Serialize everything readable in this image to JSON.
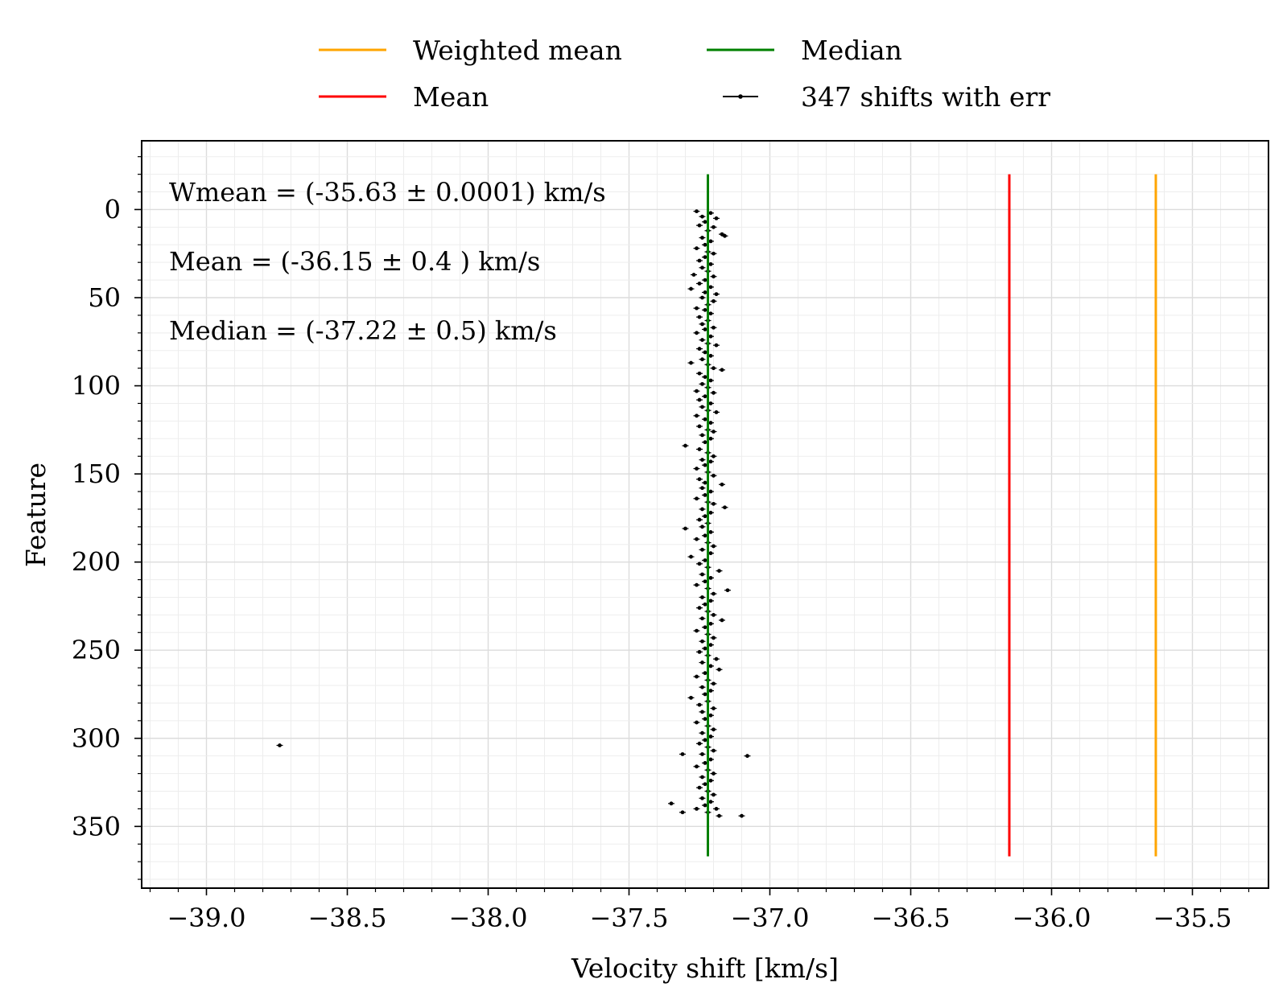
{
  "chart_data": {
    "type": "scatter",
    "xlabel": "Velocity shift [km/s]",
    "ylabel": "Feature",
    "xlim": [
      -39.23,
      -35.23
    ],
    "ylim": [
      385,
      -39
    ],
    "y_inverted": true,
    "grid": true,
    "legend_placement": "above plot, two columns",
    "x_ticks": [
      -39.0,
      -38.5,
      -38.0,
      -37.5,
      -37.0,
      -36.5,
      -36.0,
      -35.5
    ],
    "x_tick_labels": [
      "−39.0",
      "−38.5",
      "−38.0",
      "−37.5",
      "−37.0",
      "−36.5",
      "−36.0",
      "−35.5"
    ],
    "y_ticks": [
      0,
      50,
      100,
      150,
      200,
      250,
      300,
      350
    ],
    "y_tick_labels": [
      "0",
      "50",
      "100",
      "150",
      "200",
      "250",
      "300",
      "350"
    ],
    "legend": [
      {
        "label": "Weighted mean",
        "kind": "line",
        "color": "#FFA500"
      },
      {
        "label": "Median",
        "kind": "line",
        "color": "#008000"
      },
      {
        "label": "Mean",
        "kind": "line",
        "color": "#FF0000"
      },
      {
        "label": "347 shifts with err",
        "kind": "errorbar",
        "color": "#000000"
      }
    ],
    "vertical_lines": [
      {
        "name": "Median",
        "x": -37.22,
        "y_range": [
          -20,
          367
        ],
        "color": "#008000"
      },
      {
        "name": "Mean",
        "x": -36.15,
        "y_range": [
          -20,
          367
        ],
        "color": "#FF0000"
      },
      {
        "name": "Weighted mean",
        "x": -35.63,
        "y_range": [
          -20,
          367
        ],
        "color": "#FFA500"
      }
    ],
    "annotations": [
      "Wmean = (-35.63 ± 0.0001) km/s",
      "Mean = (-36.15 ± 0.4 ) km/s",
      "Median = (-37.22 ± 0.5) km/s"
    ],
    "series": [
      {
        "name": "347 shifts with err",
        "count": 347,
        "points": [
          [
            -37.26,
            1
          ],
          [
            -37.21,
            2
          ],
          [
            -37.24,
            4
          ],
          [
            -37.19,
            5
          ],
          [
            -37.23,
            7
          ],
          [
            -37.25,
            9
          ],
          [
            -37.2,
            10
          ],
          [
            -37.22,
            12
          ],
          [
            -37.17,
            14
          ],
          [
            -37.16,
            15
          ],
          [
            -37.24,
            16
          ],
          [
            -37.21,
            18
          ],
          [
            -37.23,
            20
          ],
          [
            -37.26,
            22
          ],
          [
            -37.22,
            24
          ],
          [
            -37.2,
            25
          ],
          [
            -37.23,
            27
          ],
          [
            -37.25,
            29
          ],
          [
            -37.21,
            31
          ],
          [
            -37.24,
            33
          ],
          [
            -37.22,
            35
          ],
          [
            -37.27,
            37
          ],
          [
            -37.2,
            38
          ],
          [
            -37.23,
            40
          ],
          [
            -37.25,
            42
          ],
          [
            -37.21,
            44
          ],
          [
            -37.28,
            45
          ],
          [
            -37.23,
            47
          ],
          [
            -37.19,
            48
          ],
          [
            -37.24,
            50
          ],
          [
            -37.2,
            52
          ],
          [
            -37.22,
            54
          ],
          [
            -37.26,
            56
          ],
          [
            -37.23,
            57
          ],
          [
            -37.21,
            59
          ],
          [
            -37.25,
            61
          ],
          [
            -37.22,
            63
          ],
          [
            -37.24,
            65
          ],
          [
            -37.2,
            67
          ],
          [
            -37.23,
            68
          ],
          [
            -37.26,
            70
          ],
          [
            -37.21,
            72
          ],
          [
            -37.24,
            74
          ],
          [
            -37.22,
            76
          ],
          [
            -37.19,
            77
          ],
          [
            -37.25,
            79
          ],
          [
            -37.23,
            81
          ],
          [
            -37.21,
            83
          ],
          [
            -37.24,
            85
          ],
          [
            -37.28,
            87
          ],
          [
            -37.22,
            88
          ],
          [
            -37.2,
            90
          ],
          [
            -37.17,
            91
          ],
          [
            -37.25,
            93
          ],
          [
            -37.23,
            95
          ],
          [
            -37.21,
            97
          ],
          [
            -37.24,
            99
          ],
          [
            -37.22,
            101
          ],
          [
            -37.26,
            103
          ],
          [
            -37.2,
            104
          ],
          [
            -37.23,
            106
          ],
          [
            -37.25,
            108
          ],
          [
            -37.21,
            110
          ],
          [
            -37.24,
            112
          ],
          [
            -37.22,
            114
          ],
          [
            -37.19,
            115
          ],
          [
            -37.26,
            117
          ],
          [
            -37.23,
            119
          ],
          [
            -37.21,
            121
          ],
          [
            -37.25,
            123
          ],
          [
            -37.22,
            125
          ],
          [
            -37.2,
            126
          ],
          [
            -37.24,
            128
          ],
          [
            -37.21,
            130
          ],
          [
            -37.23,
            132
          ],
          [
            -37.3,
            134
          ],
          [
            -37.25,
            136
          ],
          [
            -37.22,
            138
          ],
          [
            -37.2,
            140
          ],
          [
            -37.24,
            142
          ],
          [
            -37.21,
            143
          ],
          [
            -37.23,
            145
          ],
          [
            -37.26,
            147
          ],
          [
            -37.22,
            149
          ],
          [
            -37.2,
            151
          ],
          [
            -37.25,
            153
          ],
          [
            -37.23,
            155
          ],
          [
            -37.17,
            156
          ],
          [
            -37.24,
            158
          ],
          [
            -37.21,
            160
          ],
          [
            -37.23,
            162
          ],
          [
            -37.26,
            164
          ],
          [
            -37.22,
            166
          ],
          [
            -37.2,
            167
          ],
          [
            -37.24,
            170
          ],
          [
            -37.16,
            169
          ],
          [
            -37.21,
            172
          ],
          [
            -37.23,
            174
          ],
          [
            -37.25,
            176
          ],
          [
            -37.22,
            178
          ],
          [
            -37.3,
            181
          ],
          [
            -37.24,
            180
          ],
          [
            -37.21,
            183
          ],
          [
            -37.23,
            185
          ],
          [
            -37.26,
            187
          ],
          [
            -37.22,
            189
          ],
          [
            -37.2,
            191
          ],
          [
            -37.24,
            193
          ],
          [
            -37.21,
            195
          ],
          [
            -37.28,
            197
          ],
          [
            -37.23,
            199
          ],
          [
            -37.25,
            201
          ],
          [
            -37.22,
            203
          ],
          [
            -37.18,
            205
          ],
          [
            -37.24,
            207
          ],
          [
            -37.21,
            209
          ],
          [
            -37.23,
            211
          ],
          [
            -37.26,
            213
          ],
          [
            -37.22,
            215
          ],
          [
            -37.15,
            216
          ],
          [
            -37.2,
            218
          ],
          [
            -37.24,
            220
          ],
          [
            -37.21,
            222
          ],
          [
            -37.23,
            224
          ],
          [
            -37.25,
            226
          ],
          [
            -37.22,
            228
          ],
          [
            -37.2,
            230
          ],
          [
            -37.24,
            232
          ],
          [
            -37.17,
            233
          ],
          [
            -37.21,
            235
          ],
          [
            -37.23,
            237
          ],
          [
            -37.26,
            239
          ],
          [
            -37.22,
            241
          ],
          [
            -37.2,
            243
          ],
          [
            -37.24,
            245
          ],
          [
            -37.21,
            247
          ],
          [
            -37.23,
            249
          ],
          [
            -37.25,
            251
          ],
          [
            -37.22,
            253
          ],
          [
            -37.19,
            255
          ],
          [
            -37.24,
            257
          ],
          [
            -37.21,
            259
          ],
          [
            -37.18,
            261
          ],
          [
            -37.23,
            263
          ],
          [
            -37.26,
            265
          ],
          [
            -37.22,
            267
          ],
          [
            -37.2,
            269
          ],
          [
            -37.24,
            271
          ],
          [
            -37.21,
            273
          ],
          [
            -37.23,
            275
          ],
          [
            -37.28,
            277
          ],
          [
            -37.22,
            279
          ],
          [
            -37.25,
            281
          ],
          [
            -37.2,
            283
          ],
          [
            -37.24,
            285
          ],
          [
            -37.21,
            287
          ],
          [
            -37.23,
            289
          ],
          [
            -37.26,
            291
          ],
          [
            -37.22,
            293
          ],
          [
            -37.2,
            295
          ],
          [
            -37.24,
            297
          ],
          [
            -37.21,
            299
          ],
          [
            -37.23,
            301
          ],
          [
            -37.25,
            303
          ],
          [
            -37.22,
            305
          ],
          [
            -37.2,
            307
          ],
          [
            -37.24,
            309
          ],
          [
            -37.31,
            309
          ],
          [
            -37.08,
            310
          ],
          [
            -37.21,
            312
          ],
          [
            -37.23,
            314
          ],
          [
            -37.26,
            316
          ],
          [
            -37.22,
            318
          ],
          [
            -37.2,
            320
          ],
          [
            -37.24,
            322
          ],
          [
            -37.21,
            324
          ],
          [
            -37.23,
            326
          ],
          [
            -37.25,
            328
          ],
          [
            -37.22,
            330
          ],
          [
            -37.2,
            332
          ],
          [
            -37.24,
            334
          ],
          [
            -37.21,
            336
          ],
          [
            -37.35,
            337
          ],
          [
            -37.23,
            338
          ],
          [
            -37.19,
            340
          ],
          [
            -37.26,
            340
          ],
          [
            -37.31,
            342
          ],
          [
            -37.22,
            342
          ],
          [
            -37.18,
            344
          ],
          [
            -37.1,
            344
          ],
          [
            -38.74,
            304
          ]
        ]
      }
    ]
  }
}
